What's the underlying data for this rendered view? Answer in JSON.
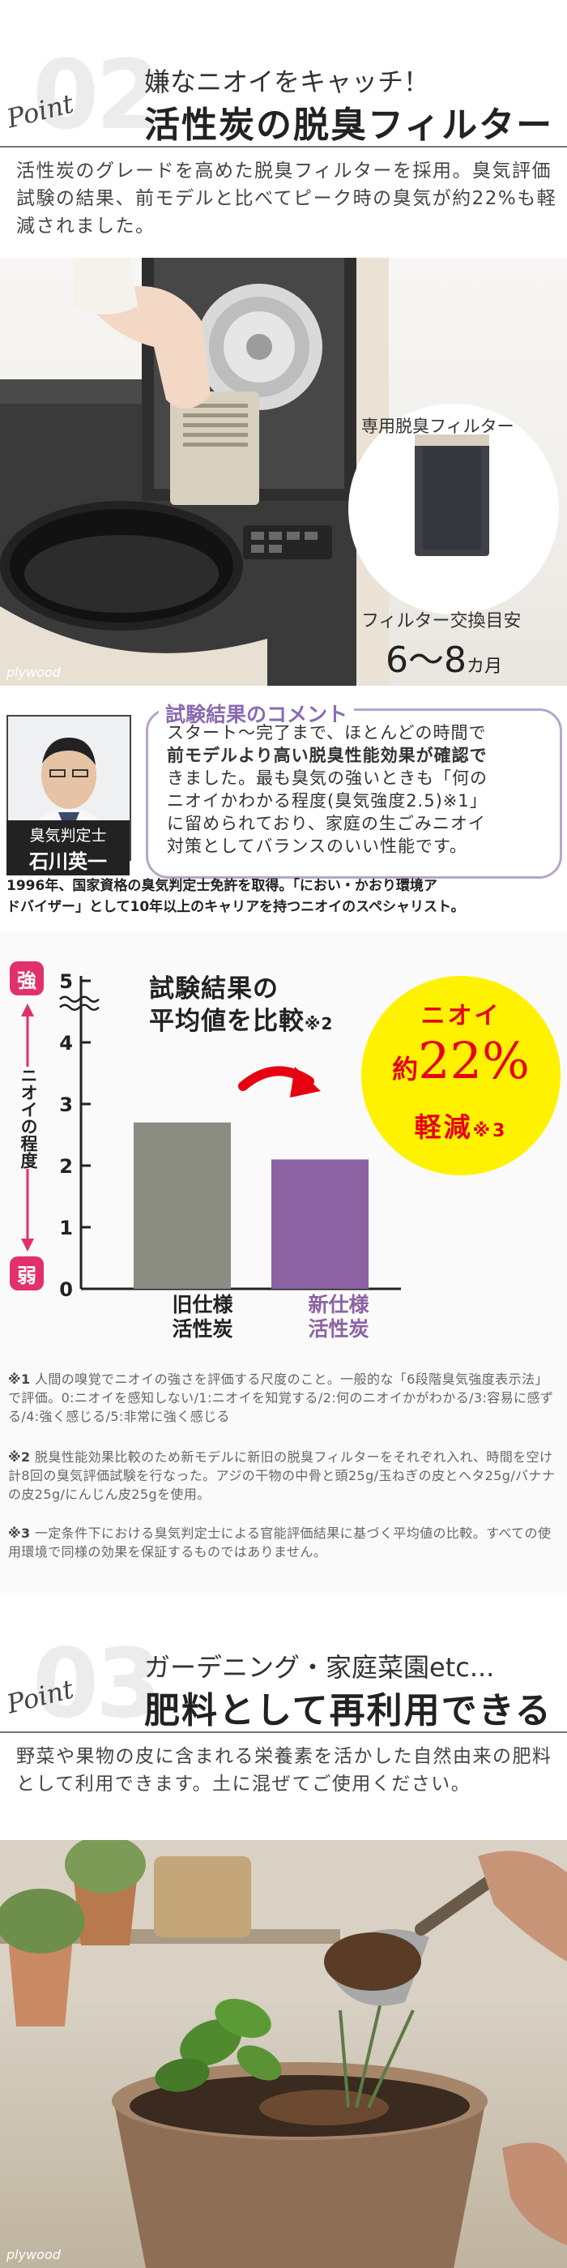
{
  "section02": {
    "number": "02",
    "point_label": "Point",
    "subtitle": "嫌なニオイをキャッチ！",
    "title": "活性炭の脱臭フィルター",
    "description": "活性炭のグレードを高めた脱臭フィルターを採用。臭気評価試験の結果、前モデルと比べてピーク時の臭気が約22%も軽減されました。",
    "filter_label": "専用脱臭フィルター",
    "replace_label": "フィルター交換目安",
    "replace_value": "6〜8",
    "replace_unit": "カ月",
    "brand": "plywood"
  },
  "expert": {
    "role": "臭気判定士",
    "name": "石川英一",
    "comment_title": "試験結果のコメント",
    "comment_lines": [
      "スタート〜完了まで、ほとんどの時間で",
      "前モデルより高い脱臭性能効果が確認で",
      "きました。最も臭気の強いときも「何の",
      "ニオイかわかる程度(臭気強度2.5)※1」",
      "に留められており、家庭の生ごみニオイ",
      "対策としてバランスのいい性能です。"
    ],
    "bio_lines": [
      "1996年、国家資格の臭気判定士免許を取得。「におい・かおり環境ア",
      "ドバイザー」として10年以上のキャリアを持つニオイのスペシャリスト。"
    ]
  },
  "chart": {
    "y_top_badge": "強",
    "y_bottom_badge": "弱",
    "y_axis_label": "ニオイの程度",
    "title_line1": "試験結果の",
    "title_line2": "平均値を比較",
    "title_note": "※2",
    "result_line1": "ニオイ",
    "result_prefix": "約",
    "result_value": "22%",
    "result_line3": "軽減",
    "result_note": "※3",
    "colors": {
      "old": "#8b8c82",
      "new": "#8c62a2",
      "badge_strong": "#e2306c",
      "badge_weak": "#e2306c"
    }
  },
  "chart_data": {
    "type": "bar",
    "categories": [
      "旧仕様\n活性炭",
      "新仕様\n活性炭"
    ],
    "category_lines": [
      [
        "旧仕様",
        "活性炭"
      ],
      [
        "新仕様",
        "活性炭"
      ]
    ],
    "values": [
      2.7,
      2.1
    ],
    "title": "試験結果の平均値を比較※2",
    "ylim": [
      0,
      5
    ],
    "yticks": [
      0,
      1,
      2,
      3,
      4,
      5
    ],
    "ylabel": "ニオイの程度",
    "axis_break_at_top": true,
    "grid": false
  },
  "notes": [
    {
      "mark": "※1",
      "text": " 人間の嗅覚でニオイの強さを評価する尺度のこと。一般的な「6段階臭気強度表示法」で評価。0:ニオイを感知しない/1:ニオイを知覚する/2:何のニオイかがわかる/3:容易に感ずる/4:強く感じる/5:非常に強く感じる"
    },
    {
      "mark": "※2",
      "text": " 脱臭性能効果比較のため新モデルに新旧の脱臭フィルターをそれぞれ入れ、時間を空け計8回の臭気評価試験を行なった。アジの干物の中骨と頭25g/玉ねぎの皮とヘタ25g/バナナの皮25g/にんじん皮25gを使用。"
    },
    {
      "mark": "※3",
      "text": " 一定条件下における臭気判定士による官能評価結果に基づく平均値の比較。すべての使用環境で同様の効果を保証するものではありません。"
    }
  ],
  "section03": {
    "number": "03",
    "point_label": "Point",
    "subtitle": "ガーデニング・家庭菜園etc...",
    "title": "肥料として再利用できる",
    "description": "野菜や果物の皮に含まれる栄養素を活かした自然由来の肥料として利用できます。土に混ぜてご使用ください。",
    "brand": "plywood"
  }
}
